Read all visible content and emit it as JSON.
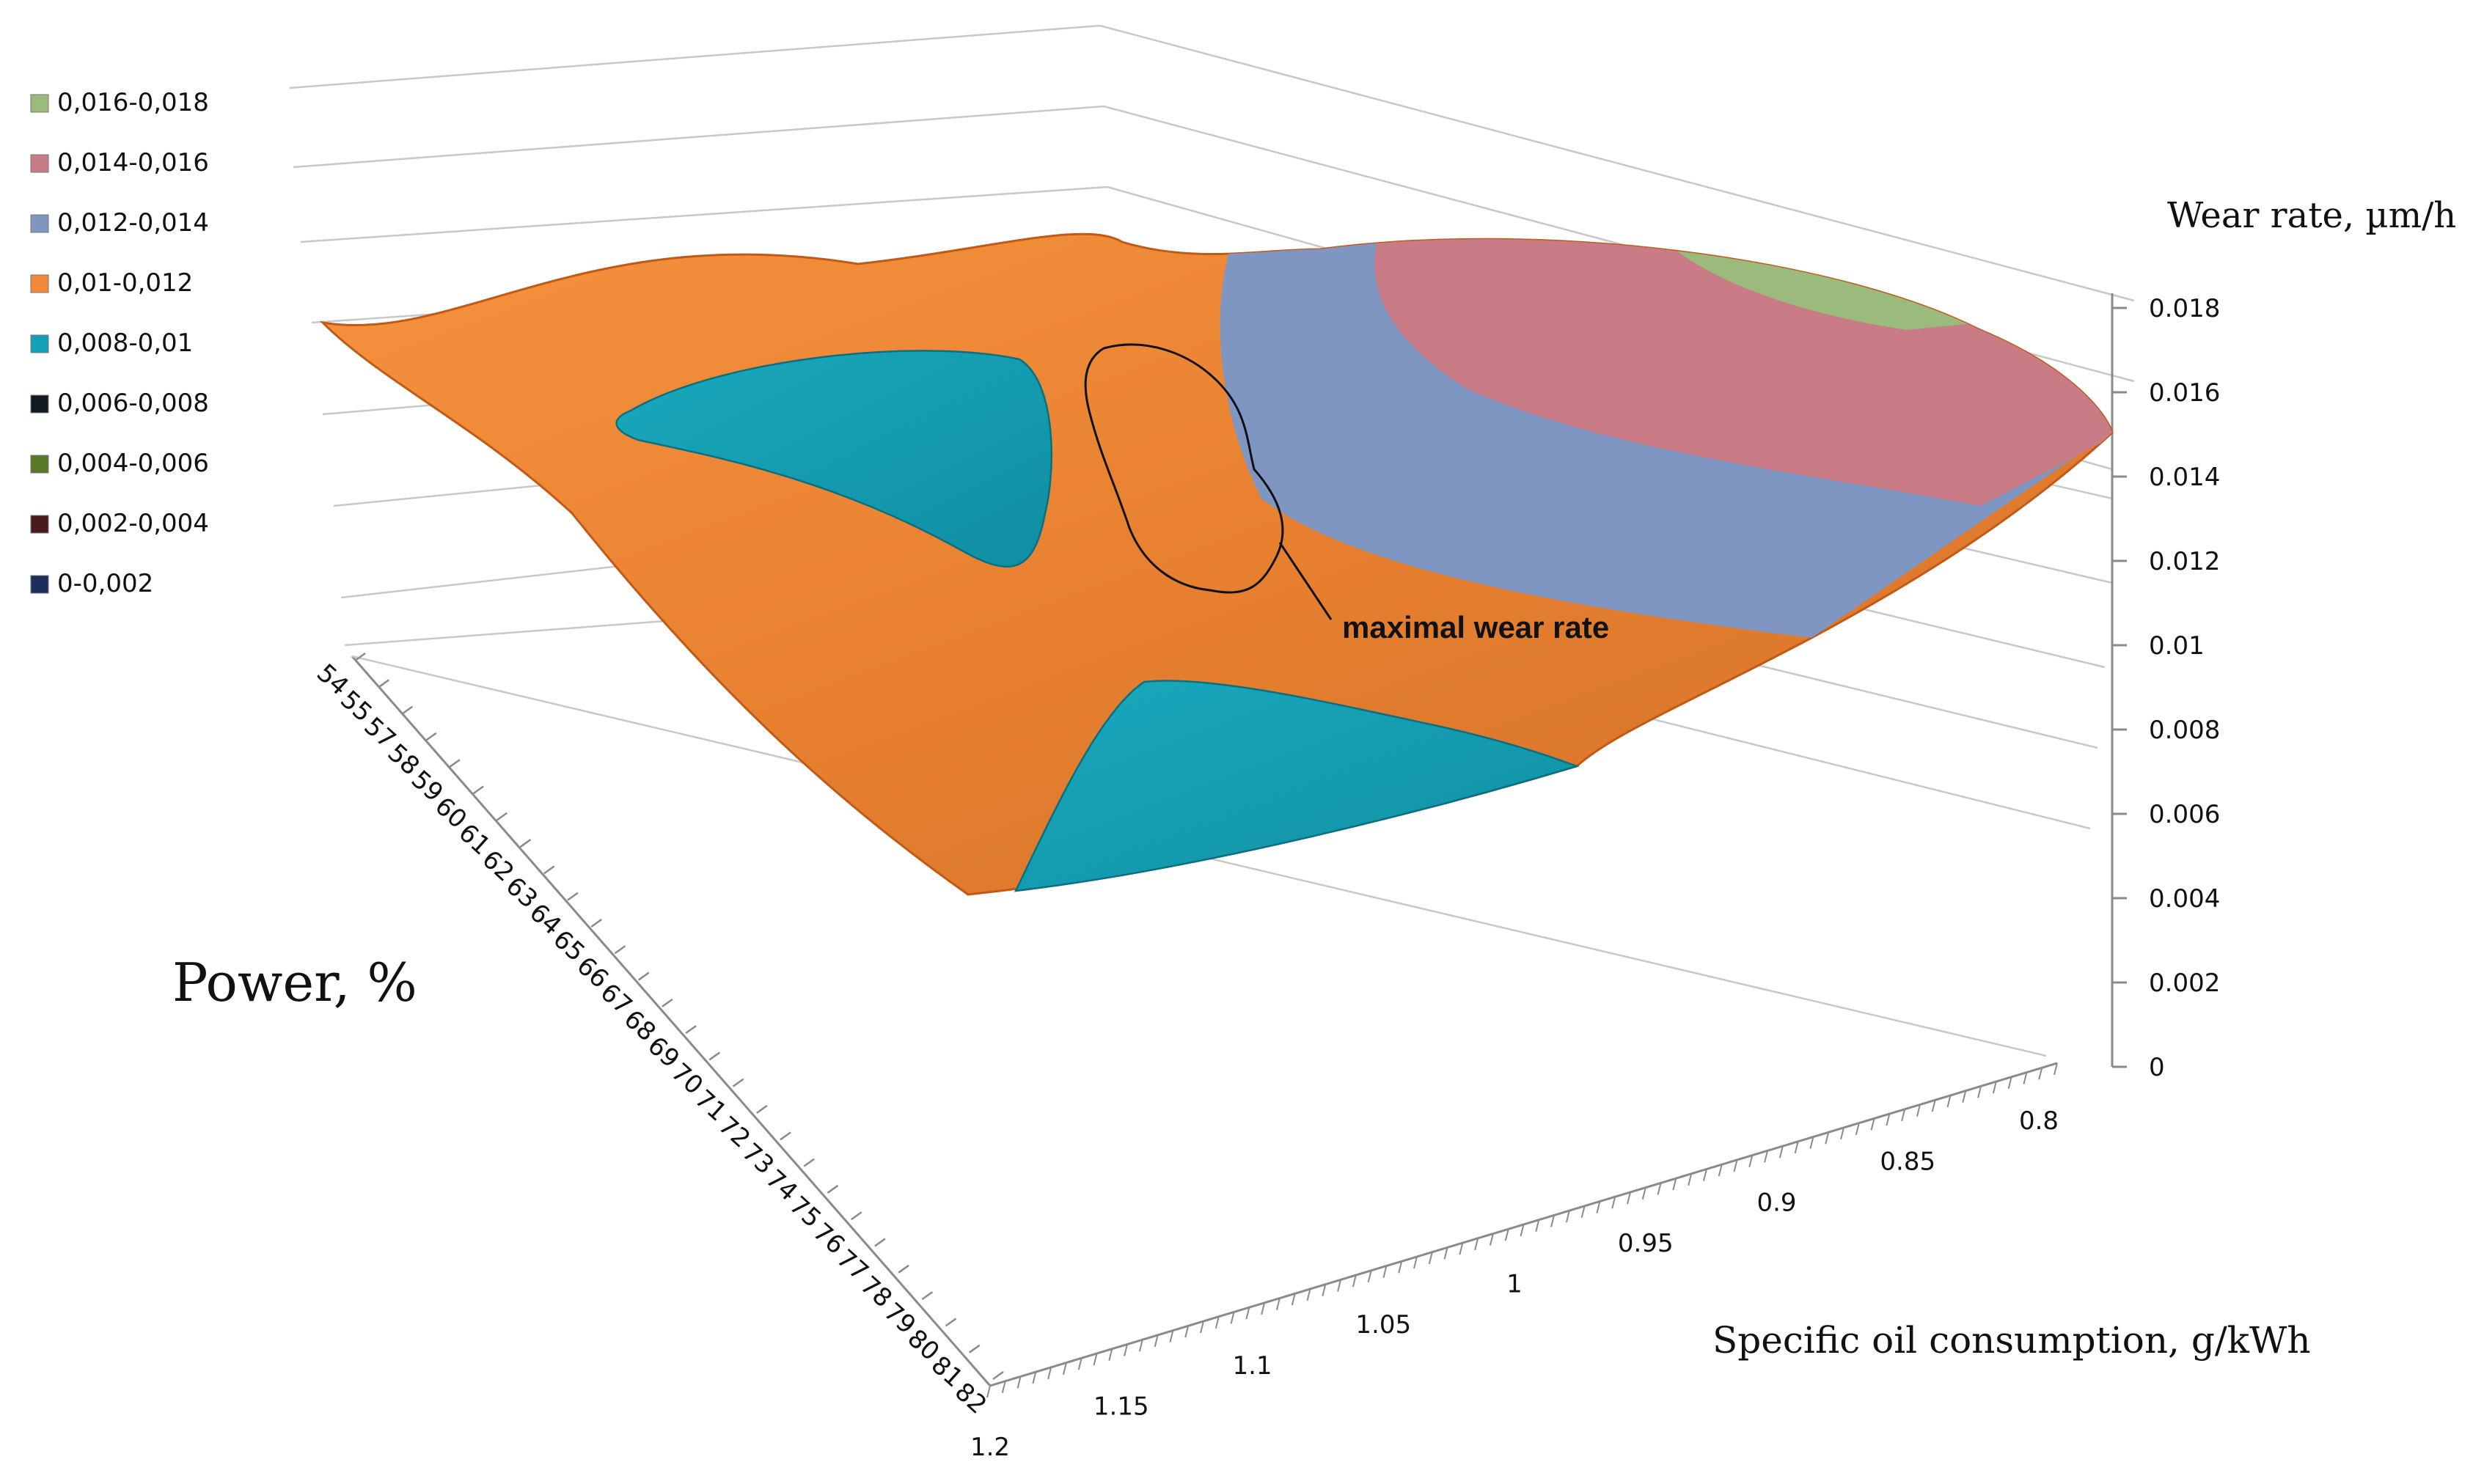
{
  "chart_data": {
    "type": "surface",
    "title": "",
    "xlabel": "Specific oil consumption, g/kWh",
    "ylabel": "Power, %",
    "zlabel": "Wear rate, µm/h",
    "x_ticks": [
      "0.8",
      "0.85",
      "0.9",
      "0.95",
      "1",
      "1.05",
      "1.1",
      "1.15",
      "1.2"
    ],
    "y_ticks": [
      "54",
      "55",
      "57",
      "58",
      "59",
      "60",
      "61",
      "62",
      "63",
      "64",
      "65",
      "66",
      "67",
      "68",
      "69",
      "70",
      "71",
      "72",
      "73",
      "74",
      "75",
      "76",
      "77",
      "78",
      "79",
      "80",
      "81",
      "82"
    ],
    "z_ticks": [
      "0",
      "0.002",
      "0.004",
      "0.006",
      "0.008",
      "0.01",
      "0.012",
      "0.014",
      "0.016",
      "0.018"
    ],
    "zlim": [
      0,
      0.018
    ],
    "legend": {
      "position": "top-left",
      "items": [
        {
          "label": "0,016-0,018",
          "color": "#9bbb7c"
        },
        {
          "label": "0,014-0,016",
          "color": "#c97b86"
        },
        {
          "label": "0,012-0,014",
          "color": "#7f96c2"
        },
        {
          "label": "0,01-0,012",
          "color": "#f08a3a"
        },
        {
          "label": "0,008-0,01",
          "color": "#139fb4"
        },
        {
          "label": "0,006-0,008",
          "color": "#101820"
        },
        {
          "label": "0,004-0,006",
          "color": "#5a7a2a"
        },
        {
          "label": "0,002-0,004",
          "color": "#4a1a1a"
        },
        {
          "label": "0-0,002",
          "color": "#1c2f5c"
        }
      ]
    },
    "annotation": "maximal wear rate",
    "colors": {
      "orange": "#f08a3a",
      "teal": "#139fb4",
      "blue": "#7f96c2",
      "pink": "#c97b86",
      "green": "#9bbb7c"
    }
  }
}
